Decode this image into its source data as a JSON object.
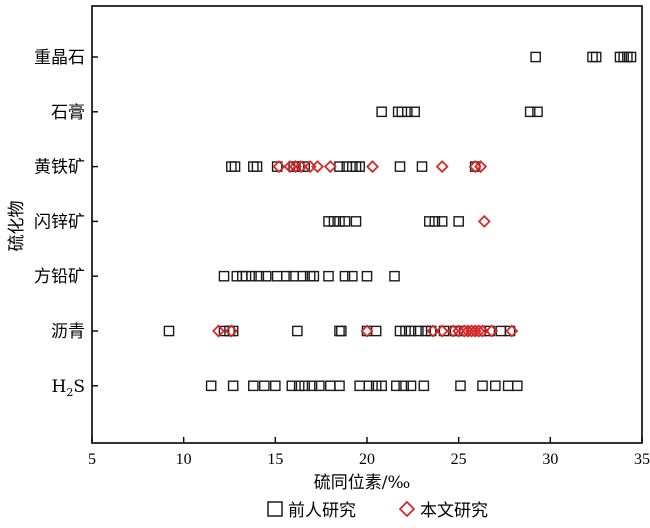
{
  "chart_data": {
    "type": "scatter",
    "xlabel": "硫同位素/‰",
    "ylabel": "硫化物",
    "xlim": [
      5,
      35
    ],
    "xticks": [
      5,
      10,
      15,
      20,
      25,
      30,
      35
    ],
    "legend_placement": "bottom",
    "categories": [
      "重晶石",
      "石膏",
      "黄铁矿",
      "闪锌矿",
      "方铅矿",
      "沥青",
      "H2S"
    ],
    "category_labels": {
      "重晶石": "重晶石",
      "石膏": "石膏",
      "黄铁矿": "黄铁矿",
      "闪锌矿": "闪锌矿",
      "方铅矿": "方铅矿",
      "沥青": "沥青",
      "H2S": {
        "main": "H",
        "sub": "2",
        "tail": "S"
      }
    },
    "series": [
      {
        "name": "前人研究",
        "marker": "square",
        "color": "#1a1a1a",
        "points": {
          "重晶石": [
            29.2,
            32.3,
            32.5,
            33.8,
            34.0,
            34.2,
            34.4
          ],
          "石膏": [
            20.8,
            21.7,
            21.9,
            22.2,
            22.6,
            28.9,
            29.3
          ],
          "黄铁矿": [
            12.6,
            12.8,
            13.8,
            14.0,
            15.1,
            16.0,
            16.3,
            16.6,
            18.5,
            18.9,
            19.2,
            19.4,
            19.6,
            21.8,
            23.0,
            25.9
          ],
          "闪锌矿": [
            17.9,
            18.2,
            18.5,
            18.8,
            19.4,
            23.4,
            23.7,
            24.1,
            25.0
          ],
          "方铅矿": [
            12.2,
            12.9,
            13.2,
            13.4,
            13.7,
            14.1,
            14.5,
            15.1,
            15.6,
            16.0,
            16.5,
            16.9,
            17.1,
            17.9,
            18.8,
            19.2,
            20.0,
            21.5
          ],
          "沥青": [
            9.2,
            12.2,
            12.5,
            12.7,
            16.2,
            18.5,
            18.6,
            20.0,
            20.5,
            21.8,
            22.1,
            22.4,
            22.8,
            23.2,
            23.5,
            24.2,
            24.8,
            25.3,
            25.7,
            26.2,
            26.7,
            27.3,
            27.8
          ],
          "H2S": [
            11.5,
            12.7,
            13.8,
            14.4,
            15.0,
            15.9,
            16.3,
            16.6,
            17.0,
            17.4,
            18.0,
            18.5,
            19.6,
            20.1,
            20.5,
            20.8,
            21.6,
            22.0,
            22.4,
            23.1,
            25.1,
            26.3,
            27.0,
            27.7,
            28.2
          ]
        }
      },
      {
        "name": "本文研究",
        "marker": "diamond",
        "color": "#d42a2a",
        "points": {
          "黄铁矿": [
            15.2,
            15.8,
            16.1,
            16.4,
            16.9,
            17.3,
            18.0,
            20.3,
            24.1,
            25.9,
            26.2
          ],
          "闪锌矿": [
            26.4
          ],
          "沥青": [
            11.9,
            12.6,
            20.0,
            23.6,
            24.1,
            24.7,
            25.0,
            25.3,
            25.5,
            25.7,
            25.9,
            26.1,
            26.3,
            26.8,
            27.9
          ]
        }
      }
    ]
  }
}
